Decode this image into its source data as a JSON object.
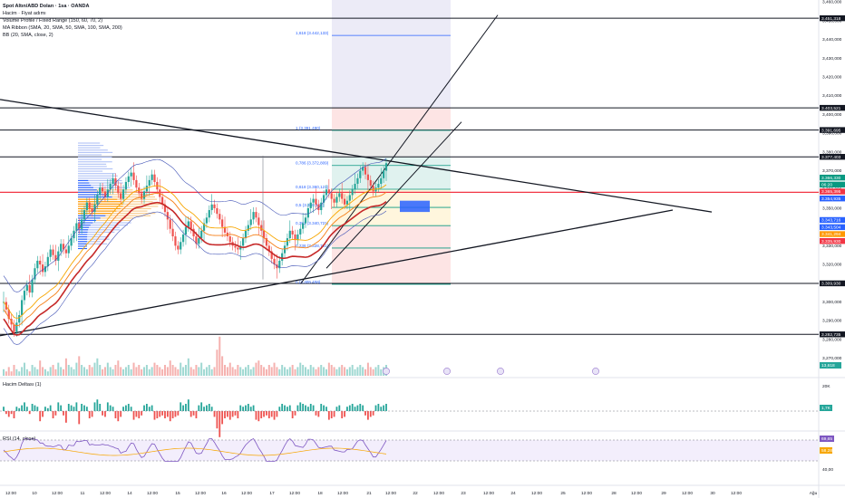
{
  "legend": {
    "title": "Spot Altın/ABD Doları · 1sa · OANDA",
    "hacim": "Hacim · Fiyat adımı",
    "volume_profile": "Volume Profile / Fixed Range (150, 60, 70, 2)",
    "ma_ribbon": "MA Ribbon (SMA, 20, SMA, 50, SMA, 100, SMA, 200)",
    "bb": "BB (20, SMA, close, 2)"
  },
  "panels": {
    "delta_label": "Hacim Deltası (1)",
    "rsi_label": "RSI (14, close)"
  },
  "colors": {
    "up": "#26a69a",
    "down": "#ef5350",
    "red_line": "#f23645",
    "blue_box": "#2962ff",
    "orange_profile": "#ff9800",
    "blue_profile": "#2962ff",
    "rsi_bg": "#f3eefc",
    "rsi_line": "#7e57c2"
  },
  "chart_data": {
    "type": "candlestick",
    "symbol": "XAUUSD",
    "ylim": [
      3265,
      3462
    ],
    "price_axis_ticks": [
      "3,460,000",
      "3,450,000",
      "3,440,000",
      "3,430,000",
      "3,420,000",
      "3,410,000",
      "3,400,000",
      "3,390,000",
      "3,380,000",
      "3,370,000",
      "3,360,000",
      "3,350,000",
      "3,340,000",
      "3,330,000",
      "3,320,000",
      "3,310,000",
      "3,300,000",
      "3,290,000",
      "3,280,000",
      "3,270,000"
    ],
    "price_axis_values": [
      3460,
      3450,
      3440,
      3430,
      3420,
      3410,
      3400,
      3390,
      3380,
      3370,
      3360,
      3350,
      3340,
      3330,
      3320,
      3310,
      3300,
      3290,
      3280,
      3270
    ],
    "level_labels": [
      {
        "price": 3451.318,
        "text": "3.451,318",
        "color": "#131722"
      },
      {
        "price": 3403.521,
        "text": "3.403,521",
        "color": "#131722"
      },
      {
        "price": 3391.695,
        "text": "3.391,695",
        "color": "#131722"
      },
      {
        "price": 3377.403,
        "text": "3.377,403",
        "color": "#131722"
      },
      {
        "price": 3366.33,
        "text": "3.366,330",
        "color": "#089981"
      },
      {
        "price": 3362.6,
        "text": "06:20",
        "color": "#089981"
      },
      {
        "price": 3358.9,
        "text": "3.365,395",
        "color": "#f23645"
      },
      {
        "price": 3355.2,
        "text": "3.354,935",
        "color": "#2962ff"
      },
      {
        "price": 3343.716,
        "text": "3.343,716",
        "color": "#2962ff"
      },
      {
        "price": 3339.9,
        "text": "3.343,504",
        "color": "#2962ff"
      },
      {
        "price": 3336.2,
        "text": "3.341,294",
        "color": "#ff9800"
      },
      {
        "price": 3332.5,
        "text": "3.335,930",
        "color": "#f23645"
      },
      {
        "price": 3309.93,
        "text": "3.309,930",
        "color": "#131722"
      },
      {
        "price": 3282.735,
        "text": "3.282,735",
        "color": "#131722"
      }
    ],
    "horizontal_levels": [
      3451.318,
      3403.521,
      3391.695,
      3377.403,
      3309.93,
      3282.735
    ],
    "fib_levels": [
      {
        "label": "1,618 (3.442,133)",
        "price": 3442.133
      },
      {
        "label": "1 (3.391,490)",
        "price": 3391.49
      },
      {
        "label": "0,786 (3.372,809)",
        "price": 3372.809
      },
      {
        "label": "0,618 (3.360,121)",
        "price": 3360.121
      },
      {
        "label": "0,5 (3.350,444)",
        "price": 3350.444
      },
      {
        "label": "0,382 (3.340,721)",
        "price": 3340.721
      },
      {
        "label": "0,236 (3.328,761)",
        "price": 3328.761
      },
      {
        "label": "0 (3.309,458)",
        "price": 3309.458
      }
    ],
    "red_horizontal": 3358.5,
    "time_axis_labels": [
      "12:00",
      "10",
      "12:00",
      "11",
      "12:00",
      "14",
      "12:00",
      "15",
      "12:00",
      "16",
      "12:00",
      "17",
      "12:00",
      "18",
      "12:00",
      "21",
      "12:00",
      "22",
      "12:00",
      "23",
      "12:00",
      "24",
      "12:00",
      "25",
      "12:00",
      "28",
      "12:00",
      "29",
      "12:00",
      "30",
      "12:00",
      "Ağu"
    ],
    "closes": [
      3300,
      3296,
      3291,
      3288,
      3284,
      3289,
      3293,
      3301,
      3306,
      3309,
      3305,
      3312,
      3318,
      3322,
      3320,
      3316,
      3319,
      3324,
      3328,
      3325,
      3322,
      3327,
      3331,
      3328,
      3326,
      3330,
      3334,
      3338,
      3342,
      3339,
      3344,
      3349,
      3353,
      3350,
      3348,
      3352,
      3357,
      3361,
      3359,
      3356,
      3360,
      3363,
      3366,
      3362,
      3358,
      3355,
      3360,
      3364,
      3367,
      3369,
      3365,
      3361,
      3358,
      3355,
      3359,
      3362,
      3365,
      3368,
      3364,
      3360,
      3356,
      3352,
      3348,
      3344,
      3339,
      3335,
      3330,
      3328,
      3332,
      3336,
      3340,
      3343,
      3339,
      3335,
      3331,
      3334,
      3338,
      3342,
      3345,
      3349,
      3352,
      3350,
      3347,
      3344,
      3340,
      3337,
      3335,
      3332,
      3330,
      3329,
      3328,
      3330,
      3334,
      3338,
      3341,
      3344,
      3348,
      3345,
      3341,
      3338,
      3334,
      3330,
      3327,
      3323,
      3320,
      3318,
      3322,
      3326,
      3330,
      3334,
      3338,
      3336,
      3333,
      3336,
      3339,
      3342,
      3345,
      3350,
      3353,
      3355,
      3352,
      3349,
      3353,
      3357,
      3360,
      3358,
      3355,
      3353,
      3356,
      3358,
      3355,
      3352,
      3354,
      3357,
      3360,
      3363,
      3366,
      3370,
      3372,
      3368,
      3365,
      3362,
      3359,
      3361,
      3363,
      3366,
      3370,
      3374
    ],
    "volume": [
      3,
      2,
      4,
      2,
      5,
      3,
      2,
      4,
      6,
      3,
      2,
      5,
      4,
      3,
      7,
      4,
      3,
      2,
      4,
      5,
      3,
      6,
      4,
      3,
      8,
      5,
      4,
      3,
      6,
      9,
      5,
      4,
      3,
      5,
      4,
      6,
      8,
      5,
      3,
      4,
      6,
      4,
      3,
      5,
      7,
      4,
      3,
      4,
      5,
      3,
      6,
      4,
      5,
      3,
      4,
      5,
      3,
      4,
      6,
      5,
      4,
      3,
      5,
      4,
      7,
      5,
      4,
      3,
      6,
      4,
      5,
      8,
      4,
      3,
      5,
      4,
      6,
      3,
      4,
      5,
      3,
      4,
      12,
      18,
      9,
      5,
      4,
      6,
      4,
      3,
      5,
      4,
      3,
      4,
      5,
      3,
      4,
      6,
      7,
      5,
      4,
      3,
      5,
      4,
      6,
      4,
      3,
      5,
      4,
      3,
      4,
      5,
      3,
      4,
      6,
      5,
      4,
      3,
      5,
      4,
      3,
      4,
      5,
      4,
      3,
      6,
      5,
      4,
      3,
      4,
      5,
      4,
      3,
      4,
      5,
      3,
      4,
      5,
      4,
      3,
      6,
      4,
      3,
      4,
      5,
      3,
      4,
      5
    ],
    "rsi_ticks": [
      "69,65",
      "58,28",
      "40,00"
    ],
    "delta_ticks": [
      "20K",
      "1,7K"
    ],
    "volume_tick": "13,618"
  }
}
